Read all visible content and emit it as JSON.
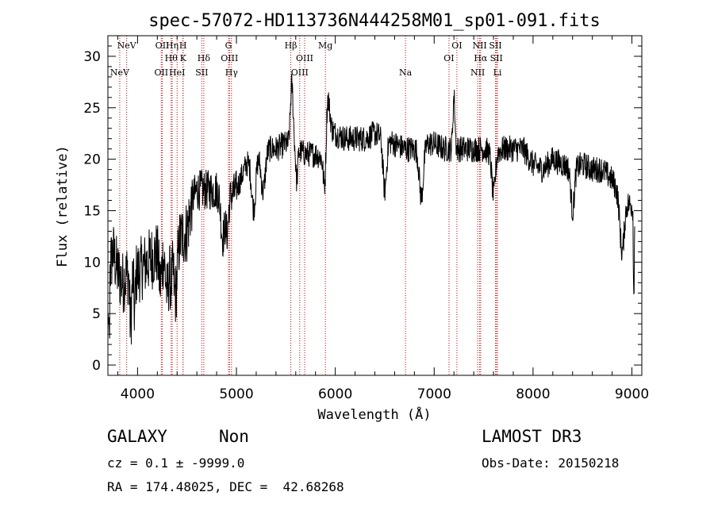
{
  "chart_data": {
    "type": "line",
    "title": "spec-57072-HD113736N444258M01_sp01-091.fits",
    "xlabel": "Wavelength (Å)",
    "ylabel": "Flux (relative)",
    "xlim": [
      3700,
      9100
    ],
    "ylim": [
      -1,
      32
    ],
    "xticks": [
      4000,
      5000,
      6000,
      7000,
      8000,
      9000
    ],
    "yticks": [
      0,
      5,
      10,
      15,
      20,
      25,
      30
    ],
    "spectrum_anchors": [
      [
        3700,
        8
      ],
      [
        3750,
        11
      ],
      [
        3800,
        9
      ],
      [
        3850,
        8
      ],
      [
        3900,
        9
      ],
      [
        4000,
        9
      ],
      [
        4100,
        10
      ],
      [
        4200,
        11
      ],
      [
        4300,
        11
      ],
      [
        4400,
        12
      ],
      [
        4500,
        13
      ],
      [
        4550,
        16
      ],
      [
        4600,
        17
      ],
      [
        4700,
        17
      ],
      [
        4800,
        17
      ],
      [
        4900,
        16
      ],
      [
        5000,
        17
      ],
      [
        5100,
        19.5
      ],
      [
        5200,
        20.5
      ],
      [
        5300,
        21
      ],
      [
        5400,
        21
      ],
      [
        5500,
        21.5
      ],
      [
        5600,
        21
      ],
      [
        5700,
        20.5
      ],
      [
        5800,
        20.5
      ],
      [
        5900,
        20
      ],
      [
        5950,
        23
      ],
      [
        6000,
        22.5
      ],
      [
        6100,
        22
      ],
      [
        6200,
        22
      ],
      [
        6300,
        22
      ],
      [
        6400,
        22.5
      ],
      [
        6500,
        22
      ],
      [
        6600,
        21.5
      ],
      [
        6700,
        21
      ],
      [
        6800,
        21
      ],
      [
        6900,
        21.5
      ],
      [
        7000,
        21.5
      ],
      [
        7100,
        21
      ],
      [
        7200,
        21
      ],
      [
        7300,
        21
      ],
      [
        7400,
        21
      ],
      [
        7500,
        21
      ],
      [
        7600,
        20.5
      ],
      [
        7700,
        21
      ],
      [
        7800,
        21
      ],
      [
        7900,
        21
      ],
      [
        8000,
        19.5
      ],
      [
        8100,
        19
      ],
      [
        8200,
        20
      ],
      [
        8300,
        19.5
      ],
      [
        8400,
        19
      ],
      [
        8500,
        19.5
      ],
      [
        8600,
        19
      ],
      [
        8700,
        19
      ],
      [
        8800,
        18
      ],
      [
        8900,
        16
      ],
      [
        9000,
        15.5
      ],
      [
        9030,
        14
      ]
    ],
    "absorption_features": [
      [
        3930,
        5,
        14
      ],
      [
        3970,
        4,
        10
      ],
      [
        4230,
        3,
        20
      ],
      [
        4300,
        4,
        25
      ],
      [
        4340,
        3,
        15
      ],
      [
        4383,
        5,
        25
      ],
      [
        4861,
        4,
        25
      ],
      [
        4905,
        3,
        20
      ],
      [
        5175,
        5,
        30
      ],
      [
        5270,
        4,
        30
      ],
      [
        5610,
        3,
        14
      ],
      [
        5895,
        4,
        20
      ],
      [
        6500,
        5,
        25
      ],
      [
        6870,
        5,
        30
      ],
      [
        7600,
        4,
        25
      ],
      [
        8400,
        4,
        25
      ],
      [
        8900,
        5,
        30
      ]
    ],
    "emission_features": [
      [
        5560,
        6,
        20
      ],
      [
        5920,
        5,
        25
      ],
      [
        7200,
        5,
        15
      ]
    ],
    "ref_lines": [
      {
        "wave": 3820,
        "label": "NeV",
        "row": 3
      },
      {
        "wave": 3890,
        "label": "NeV",
        "row": 1
      },
      {
        "wave": 4240,
        "label": "OII",
        "row": 3
      },
      {
        "wave": 4250,
        "label": "OII",
        "row": 1
      },
      {
        "wave": 4340,
        "label": "Hθ",
        "row": 2
      },
      {
        "wave": 4350,
        "label": "Hη",
        "row": 1
      },
      {
        "wave": 4400,
        "label": "HeI",
        "row": 3
      },
      {
        "wave": 4460,
        "label": "H",
        "row": 1
      },
      {
        "wave": 4460,
        "label": "K",
        "row": 2
      },
      {
        "wave": 4650,
        "label": "SII",
        "row": 3
      },
      {
        "wave": 4670,
        "label": "Hδ",
        "row": 2
      },
      {
        "wave": 4920,
        "label": "G",
        "row": 1
      },
      {
        "wave": 4930,
        "label": "OIII",
        "row": 2
      },
      {
        "wave": 4950,
        "label": "Hγ",
        "row": 3
      },
      {
        "wave": 5550,
        "label": "Hβ",
        "row": 1
      },
      {
        "wave": 5640,
        "label": "OIII",
        "row": 3
      },
      {
        "wave": 5690,
        "label": "OIII",
        "row": 2
      },
      {
        "wave": 5900,
        "label": "Mg",
        "row": 1
      },
      {
        "wave": 6710,
        "label": "Na",
        "row": 3
      },
      {
        "wave": 7150,
        "label": "OI",
        "row": 2
      },
      {
        "wave": 7230,
        "label": "OI",
        "row": 1
      },
      {
        "wave": 7440,
        "label": "NII",
        "row": 3
      },
      {
        "wave": 7460,
        "label": "NII",
        "row": 1
      },
      {
        "wave": 7470,
        "label": "Hα",
        "row": 2
      },
      {
        "wave": 7620,
        "label": "SII",
        "row": 1
      },
      {
        "wave": 7630,
        "label": "SII",
        "row": 2
      },
      {
        "wave": 7640,
        "label": "Li",
        "row": 3
      }
    ],
    "grid": false,
    "legend": "none"
  },
  "info": {
    "class_label": "GALAXY",
    "subclass_label": "Non",
    "survey_label": "LAMOST DR3",
    "cz_text": "cz = 0.1 ± -9999.0",
    "obs_date_text": "Obs-Date: 20150218",
    "radec_text": "RA = 174.48025, DEC =  42.68268"
  },
  "colors": {
    "spectrum": "#000000",
    "ref_line": "#cc0000",
    "axis": "#000000"
  }
}
